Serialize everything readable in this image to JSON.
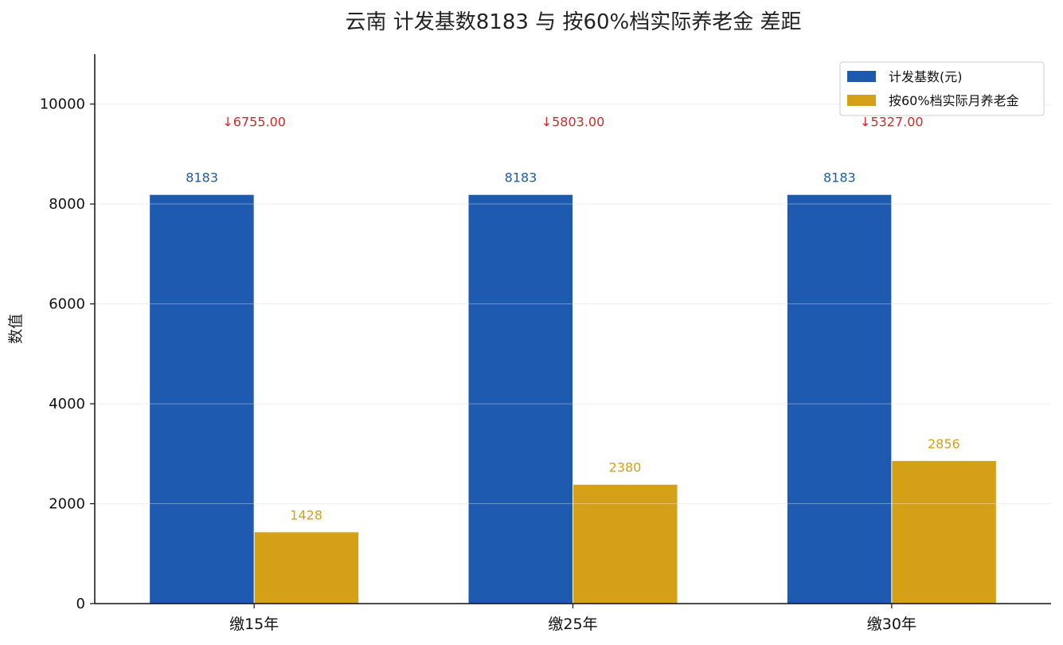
{
  "chart_data": {
    "type": "bar",
    "title": "云南 计发基数8183 与 按60%档实际养老金 差距",
    "xlabel": "",
    "ylabel": "数值",
    "categories": [
      "缴15年",
      "缴25年",
      "缴30年"
    ],
    "series": [
      {
        "name": "计发基数(元)",
        "values": [
          8183,
          8183,
          8183
        ],
        "color": "#1f5ab1"
      },
      {
        "name": "按60%档实际月养老金",
        "values": [
          1428,
          2380,
          2856
        ],
        "color": "#d4a017"
      }
    ],
    "data_labels": [
      [
        "8183",
        "8183",
        "8183"
      ],
      [
        "1428",
        "2380",
        "2856"
      ]
    ],
    "annotations": [
      "↓6755.00",
      "↓5803.00",
      "↓5327.00"
    ],
    "annotation_values": [
      9650,
      9650,
      9650
    ],
    "annotation_color": "#d62728",
    "ylim": [
      0,
      11000
    ],
    "yticks": [
      0,
      2000,
      4000,
      6000,
      8000,
      10000
    ],
    "grid": true,
    "legend_position": "top-right"
  }
}
